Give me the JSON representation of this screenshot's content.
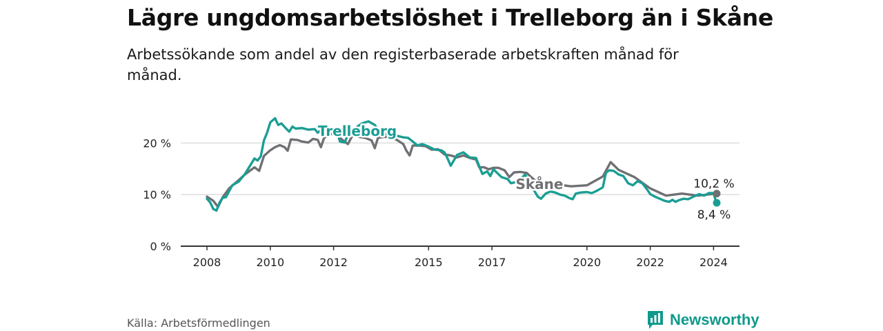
{
  "title": "Lägre ungdomsarbetslöshet i Trelleborg än i Skåne",
  "subtitle": "Arbetssökande som andel av den registerbaserade arbetskraften månad för månad.",
  "source": "Källa: Arbetsförmedlingen",
  "brand": "Newsworthy",
  "icons": {
    "brand": "newsworthy-logo-icon"
  },
  "colors": {
    "trelleborg": "#1a9e94",
    "skane": "#707074",
    "grid": "#dddddd",
    "axis": "#333333",
    "brand": "#0f9a8c"
  },
  "chart_data": {
    "type": "line",
    "title": "Lägre ungdomsarbetslöshet i Trelleborg än i Skåne",
    "xlabel": "",
    "ylabel": "",
    "xlim": [
      2007.6,
      2024.85
    ],
    "ylim": [
      0,
      25
    ],
    "y_ticks": [
      0,
      10,
      20
    ],
    "y_tick_labels": [
      "0 %",
      "10 %",
      "20 %"
    ],
    "x_ticks": [
      2008,
      2010,
      2012,
      2015,
      2017,
      2020,
      2022,
      2024
    ],
    "x_tick_labels": [
      "2008",
      "2010",
      "2012",
      "2015",
      "2017",
      "2020",
      "2022",
      "2024"
    ],
    "series": [
      {
        "name": "Trelleborg",
        "label": "Trelleborg",
        "points": [
          [
            2008.0,
            9.2
          ],
          [
            2008.1,
            8.5
          ],
          [
            2008.2,
            7.2
          ],
          [
            2008.3,
            6.9
          ],
          [
            2008.4,
            8.5
          ],
          [
            2008.5,
            9.4
          ],
          [
            2008.6,
            9.5
          ],
          [
            2008.8,
            11.8
          ],
          [
            2009.0,
            12.5
          ],
          [
            2009.2,
            14.0
          ],
          [
            2009.4,
            16.0
          ],
          [
            2009.5,
            17.0
          ],
          [
            2009.6,
            16.6
          ],
          [
            2009.7,
            17.4
          ],
          [
            2009.8,
            20.5
          ],
          [
            2009.9,
            22.0
          ],
          [
            2010.0,
            24.0
          ],
          [
            2010.15,
            24.8
          ],
          [
            2010.25,
            23.5
          ],
          [
            2010.35,
            23.8
          ],
          [
            2010.5,
            22.8
          ],
          [
            2010.6,
            22.2
          ],
          [
            2010.7,
            23.2
          ],
          [
            2010.8,
            22.8
          ],
          [
            2011.0,
            22.9
          ],
          [
            2011.2,
            22.6
          ],
          [
            2011.4,
            22.7
          ],
          [
            2011.5,
            22.0
          ],
          [
            2011.6,
            22.5
          ],
          [
            2011.7,
            21.8
          ],
          [
            2011.8,
            22.5
          ],
          [
            2012.0,
            22.6
          ],
          [
            2012.1,
            22.2
          ],
          [
            2012.2,
            20.3
          ],
          [
            2012.35,
            20.1
          ],
          [
            2012.5,
            22.4
          ],
          [
            2012.7,
            23.0
          ],
          [
            2012.9,
            23.8
          ],
          [
            2013.1,
            24.2
          ],
          [
            2013.3,
            23.5
          ],
          [
            2013.45,
            22.1
          ],
          [
            2013.6,
            21.8
          ],
          [
            2013.8,
            21.5
          ],
          [
            2014.0,
            21.4
          ],
          [
            2014.2,
            21.1
          ],
          [
            2014.35,
            21.0
          ],
          [
            2014.5,
            20.3
          ],
          [
            2014.65,
            19.5
          ],
          [
            2014.8,
            19.8
          ],
          [
            2015.0,
            19.3
          ],
          [
            2015.2,
            18.7
          ],
          [
            2015.4,
            18.6
          ],
          [
            2015.5,
            18.2
          ],
          [
            2015.6,
            17.0
          ],
          [
            2015.7,
            15.6
          ],
          [
            2015.9,
            17.7
          ],
          [
            2016.1,
            18.2
          ],
          [
            2016.3,
            17.2
          ],
          [
            2016.5,
            17.1
          ],
          [
            2016.6,
            15.5
          ],
          [
            2016.7,
            14.0
          ],
          [
            2016.85,
            14.5
          ],
          [
            2016.95,
            13.6
          ],
          [
            2017.05,
            14.9
          ],
          [
            2017.2,
            14.0
          ],
          [
            2017.3,
            13.4
          ],
          [
            2017.5,
            13.0
          ],
          [
            2017.6,
            12.2
          ],
          [
            2017.75,
            12.4
          ],
          [
            2017.9,
            13.0
          ],
          [
            2018.05,
            13.9
          ],
          [
            2018.2,
            12.0
          ],
          [
            2018.35,
            10.6
          ],
          [
            2018.45,
            9.6
          ],
          [
            2018.55,
            9.2
          ],
          [
            2018.7,
            10.2
          ],
          [
            2018.85,
            10.6
          ],
          [
            2019.0,
            10.4
          ],
          [
            2019.15,
            10.0
          ],
          [
            2019.3,
            9.8
          ],
          [
            2019.45,
            9.3
          ],
          [
            2019.55,
            9.1
          ],
          [
            2019.65,
            10.2
          ],
          [
            2019.8,
            10.4
          ],
          [
            2020.0,
            10.5
          ],
          [
            2020.15,
            10.3
          ],
          [
            2020.3,
            10.7
          ],
          [
            2020.5,
            11.4
          ],
          [
            2020.6,
            14.2
          ],
          [
            2020.7,
            14.7
          ],
          [
            2020.85,
            14.6
          ],
          [
            2021.0,
            13.9
          ],
          [
            2021.15,
            13.6
          ],
          [
            2021.3,
            12.2
          ],
          [
            2021.45,
            11.8
          ],
          [
            2021.6,
            12.6
          ],
          [
            2021.75,
            12.2
          ],
          [
            2021.9,
            11.0
          ],
          [
            2022.0,
            10.1
          ],
          [
            2022.15,
            9.6
          ],
          [
            2022.3,
            9.2
          ],
          [
            2022.45,
            8.8
          ],
          [
            2022.6,
            8.6
          ],
          [
            2022.7,
            9.0
          ],
          [
            2022.8,
            8.6
          ],
          [
            2022.9,
            8.9
          ],
          [
            2023.05,
            9.2
          ],
          [
            2023.2,
            9.1
          ],
          [
            2023.4,
            9.7
          ],
          [
            2023.55,
            10.1
          ],
          [
            2023.7,
            9.8
          ],
          [
            2023.85,
            10.3
          ],
          [
            2024.0,
            10.3
          ],
          [
            2024.05,
            9.2
          ],
          [
            2024.1,
            8.4
          ]
        ]
      },
      {
        "name": "Skåne",
        "label": "Skåne",
        "points": [
          [
            2008.0,
            9.6
          ],
          [
            2008.2,
            8.8
          ],
          [
            2008.35,
            7.6
          ],
          [
            2008.5,
            9.5
          ],
          [
            2008.7,
            11.2
          ],
          [
            2009.0,
            12.8
          ],
          [
            2009.2,
            13.9
          ],
          [
            2009.5,
            15.3
          ],
          [
            2009.65,
            14.6
          ],
          [
            2009.8,
            17.5
          ],
          [
            2010.0,
            18.6
          ],
          [
            2010.15,
            19.2
          ],
          [
            2010.3,
            19.6
          ],
          [
            2010.45,
            19.2
          ],
          [
            2010.55,
            18.5
          ],
          [
            2010.65,
            20.7
          ],
          [
            2010.85,
            20.6
          ],
          [
            2011.0,
            20.3
          ],
          [
            2011.2,
            20.1
          ],
          [
            2011.35,
            20.8
          ],
          [
            2011.5,
            20.6
          ],
          [
            2011.6,
            19.2
          ],
          [
            2011.7,
            21.0
          ],
          [
            2011.9,
            21.8
          ],
          [
            2012.1,
            21.5
          ],
          [
            2012.3,
            20.5
          ],
          [
            2012.45,
            19.8
          ],
          [
            2012.6,
            21.5
          ],
          [
            2012.8,
            21.2
          ],
          [
            2013.0,
            21.0
          ],
          [
            2013.2,
            20.5
          ],
          [
            2013.3,
            19.0
          ],
          [
            2013.4,
            21.0
          ],
          [
            2013.6,
            21.2
          ],
          [
            2013.8,
            21.1
          ],
          [
            2014.0,
            20.6
          ],
          [
            2014.2,
            19.8
          ],
          [
            2014.3,
            18.5
          ],
          [
            2014.4,
            17.6
          ],
          [
            2014.5,
            19.5
          ],
          [
            2014.7,
            19.5
          ],
          [
            2014.9,
            19.4
          ],
          [
            2015.1,
            18.7
          ],
          [
            2015.3,
            18.8
          ],
          [
            2015.5,
            17.8
          ],
          [
            2015.7,
            17.6
          ],
          [
            2015.9,
            17.2
          ],
          [
            2016.1,
            17.6
          ],
          [
            2016.3,
            17.1
          ],
          [
            2016.5,
            16.8
          ],
          [
            2016.6,
            15.3
          ],
          [
            2016.75,
            15.3
          ],
          [
            2016.9,
            14.9
          ],
          [
            2017.05,
            15.2
          ],
          [
            2017.2,
            15.2
          ],
          [
            2017.4,
            14.7
          ],
          [
            2017.55,
            13.4
          ],
          [
            2017.7,
            14.3
          ],
          [
            2017.9,
            14.4
          ],
          [
            2018.1,
            14.2
          ],
          [
            2018.2,
            13.6
          ]
        ]
      }
    ],
    "annotations": [
      {
        "text": "10,2 %",
        "series": "Skåne",
        "x": 2024.1,
        "y": 10.2
      },
      {
        "text": "8,4 %",
        "series": "Trelleborg",
        "x": 2024.1,
        "y": 8.4
      }
    ]
  }
}
